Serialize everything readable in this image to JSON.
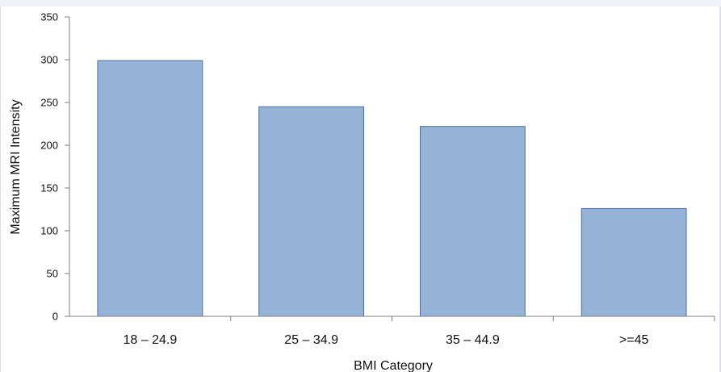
{
  "chart_data": {
    "type": "bar",
    "categories": [
      "18 – 24.9",
      "25 – 34.9",
      "35 – 44.9",
      ">=45"
    ],
    "values": [
      299,
      245,
      222,
      126
    ],
    "title": "",
    "xlabel": "BMI Category",
    "ylabel": "Maximum MRI Intensity",
    "ylim": [
      0,
      350
    ],
    "yticks": [
      0,
      50,
      100,
      150,
      200,
      250,
      300,
      350
    ],
    "grid": false,
    "legend": "none",
    "colors": {
      "bar_fill": "#95b3d7",
      "bar_stroke": "#4f6fa0",
      "axis": "#7f7f7f"
    }
  }
}
